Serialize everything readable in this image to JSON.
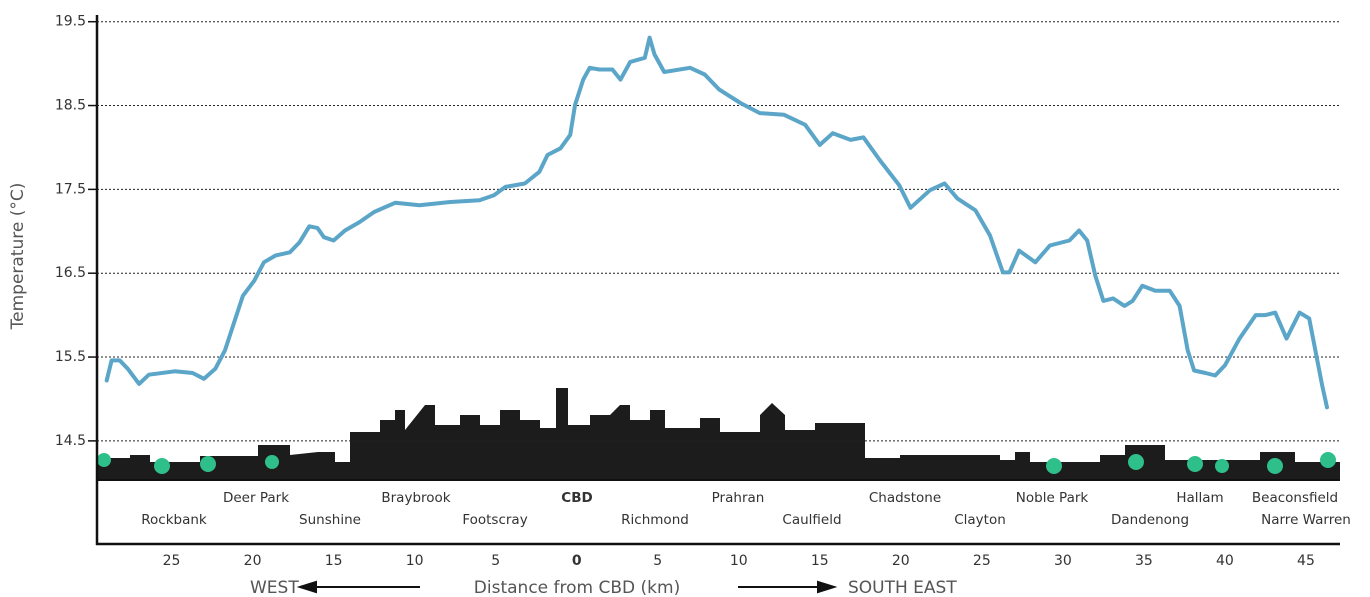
{
  "chart_data": {
    "type": "line",
    "y_label": "Temperature (°C)",
    "x_label": "Distance from CBD (km)",
    "west_label": "WEST",
    "east_label": "SOUTH EAST",
    "places": [
      "Rockbank",
      "Deer Park",
      "Sunshine",
      "Braybrook",
      "Footscray",
      "CBD",
      "Richmond",
      "Prahran",
      "Caulfield",
      "Chadstone",
      "Clayton",
      "Noble Park",
      "Dandenong",
      "Hallam",
      "Narre Warren",
      "Beaconsfield"
    ],
    "xlim": [
      -29.6,
      47.1
    ],
    "ylim": [
      13.27,
      19.58
    ],
    "xticks": [
      {
        "value": -25,
        "label": "25"
      },
      {
        "value": -20,
        "label": "20"
      },
      {
        "value": -15,
        "label": "15"
      },
      {
        "value": -10,
        "label": "10"
      },
      {
        "value": -5,
        "label": "5"
      },
      0,
      5,
      10,
      15,
      20,
      25,
      30,
      35,
      40,
      45
    ],
    "yticks": [
      14.5,
      15.5,
      16.5,
      17.5,
      18.5,
      19.5
    ],
    "grid": true,
    "series": [
      {
        "color": "#5aa5c8",
        "x": [
          -29.0,
          -28.7,
          -28.2,
          -27.7,
          -27.0,
          -26.4,
          -24.8,
          -23.7,
          -23.0,
          -22.3,
          -21.7,
          -20.6,
          -19.9,
          -19.3,
          -18.6,
          -17.7,
          -17.1,
          -16.5,
          -16.0,
          -15.6,
          -15.0,
          -14.3,
          -13.4,
          -12.5,
          -11.2,
          -9.7,
          -7.8,
          -6.0,
          -5.1,
          -4.4,
          -3.2,
          -2.3,
          -1.8,
          -1.0,
          -0.4,
          -0.1,
          0.4,
          0.8,
          1.4,
          2.2,
          2.7,
          3.3,
          4.2,
          4.5,
          4.8,
          5.4,
          7.0,
          7.9,
          8.8,
          10.1,
          11.3,
          12.8,
          14.1,
          15.0,
          15.8,
          16.9,
          17.7,
          18.7,
          19.9,
          20.6,
          21.8,
          22.7,
          23.5,
          24.6,
          25.5,
          26.3,
          26.7,
          27.3,
          28.3,
          29.2,
          30.4,
          31.0,
          31.5,
          32.0,
          32.5,
          33.1,
          33.8,
          34.3,
          34.9,
          35.7,
          36.6,
          37.2,
          37.7,
          38.1,
          38.8,
          39.4,
          40.0,
          40.9,
          41.9,
          42.5,
          43.1,
          43.8,
          44.6,
          45.2,
          45.7,
          46.0,
          46.3
        ],
        "values": [
          15.22,
          15.46,
          15.46,
          15.36,
          15.18,
          15.29,
          15.33,
          15.31,
          15.24,
          15.36,
          15.58,
          16.23,
          16.41,
          16.63,
          16.71,
          16.75,
          16.87,
          17.06,
          17.04,
          16.93,
          16.89,
          17.01,
          17.11,
          17.23,
          17.34,
          17.31,
          17.35,
          17.37,
          17.43,
          17.53,
          17.57,
          17.71,
          17.91,
          17.99,
          18.15,
          18.51,
          18.81,
          18.95,
          18.93,
          18.93,
          18.81,
          19.02,
          19.07,
          19.31,
          19.11,
          18.9,
          18.95,
          18.87,
          18.69,
          18.53,
          18.41,
          18.39,
          18.27,
          18.03,
          18.17,
          18.09,
          18.12,
          17.85,
          17.55,
          17.28,
          17.49,
          17.57,
          17.39,
          17.25,
          16.95,
          16.51,
          16.51,
          16.77,
          16.63,
          16.83,
          16.89,
          17.01,
          16.89,
          16.47,
          16.17,
          16.2,
          16.11,
          16.17,
          16.35,
          16.29,
          16.29,
          16.11,
          15.58,
          15.34,
          15.31,
          15.28,
          15.4,
          15.72,
          16.0,
          16.0,
          16.03,
          15.72,
          16.03,
          15.96,
          15.46,
          15.16,
          14.9
        ]
      }
    ]
  }
}
